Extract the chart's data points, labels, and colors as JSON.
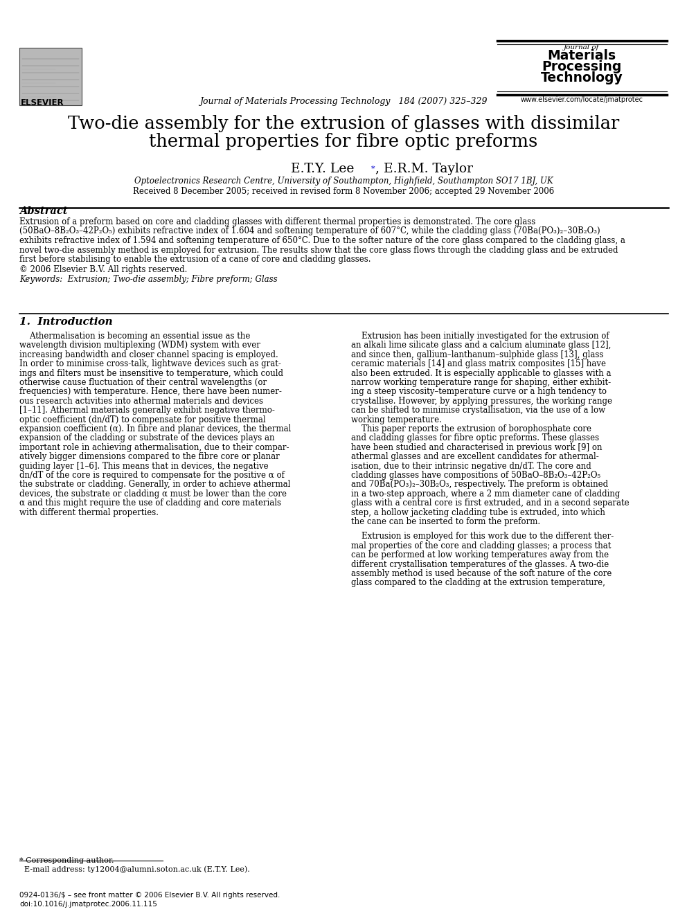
{
  "title_line1": "Two-die assembly for the extrusion of glasses with dissimilar",
  "title_line2": "thermal properties for fibre optic preforms",
  "authors_part1": "E.T.Y. Lee",
  "authors_part2": ", E.R.M. Taylor",
  "affiliation": "Optoelectronics Research Centre, University of Southampton, Highfield, Southampton SO17 1BJ, UK",
  "received": "Received 8 December 2005; received in revised form 8 November 2006; accepted 29 November 2006",
  "journal_header": "Journal of Materials Processing Technology   184 (2007) 325–329",
  "journal_name_line1": "Journal of",
  "journal_name_line2": "Materials",
  "journal_name_line3": "Processing",
  "journal_name_line4": "Technology",
  "journal_url": "www.elsevier.com/locate/jmatprotec",
  "elsevier_text": "ELSEVIER",
  "abstract_title": "Abstract",
  "abstract_lines": [
    "Extrusion of a preform based on core and cladding glasses with different thermal properties is demonstrated. The core glass",
    "(50BaO–8B₂O₃–42P₂O₅) exhibits refractive index of 1.604 and softening temperature of 607°C, while the cladding glass (70Ba(PO₃)₂–30B₂O₃)",
    "exhibits refractive index of 1.594 and softening temperature of 650°C. Due to the softer nature of the core glass compared to the cladding glass, a",
    "novel two-die assembly method is employed for extrusion. The results show that the core glass flows through the cladding glass and be extruded",
    "first before stabilising to enable the extrusion of a cane of core and cladding glasses."
  ],
  "copyright": "© 2006 Elsevier B.V. All rights reserved.",
  "keywords_line": "Keywords:  Extrusion; Two-die assembly; Fibre preform; Glass",
  "section1_title": "1.  Introduction",
  "left_col_lines": [
    "    Athermalisation is becoming an essential issue as the",
    "wavelength division multiplexing (WDM) system with ever",
    "increasing bandwidth and closer channel spacing is employed.",
    "In order to minimise cross-talk, lightwave devices such as grat-",
    "ings and filters must be insensitive to temperature, which could",
    "otherwise cause fluctuation of their central wavelengths (or",
    "frequencies) with temperature. Hence, there have been numer-",
    "ous research activities into athermal materials and devices",
    "[1–11]. Athermal materials generally exhibit negative thermo-",
    "optic coefficient (dn/dT) to compensate for positive thermal",
    "expansion coefficient (α). In fibre and planar devices, the thermal",
    "expansion of the cladding or substrate of the devices plays an",
    "important role in achieving athermalisation, due to their compar-",
    "atively bigger dimensions compared to the fibre core or planar",
    "guiding layer [1–6]. This means that in devices, the negative",
    "dn/dT of the core is required to compensate for the positive α of",
    "the substrate or cladding. Generally, in order to achieve athermal",
    "devices, the substrate or cladding α must be lower than the core",
    "α and this might require the use of cladding and core materials",
    "with different thermal properties."
  ],
  "right_col_lines": [
    "    Extrusion has been initially investigated for the extrusion of",
    "an alkali lime silicate glass and a calcium aluminate glass [12],",
    "and since then, gallium–lanthanum–sulphide glass [13], glass",
    "ceramic materials [14] and glass matrix composites [15] have",
    "also been extruded. It is especially applicable to glasses with a",
    "narrow working temperature range for shaping, either exhibit-",
    "ing a steep viscosity–temperature curve or a high tendency to",
    "crystallise. However, by applying pressures, the working range",
    "can be shifted to minimise crystallisation, via the use of a low",
    "working temperature.",
    "    This paper reports the extrusion of borophosphate core",
    "and cladding glasses for fibre optic preforms. These glasses",
    "have been studied and characterised in previous work [9] on",
    "athermal glasses and are excellent candidates for athermal-",
    "isation, due to their intrinsic negative dn/dT. The core and",
    "cladding glasses have compositions of 50BaO–8B₂O₃–42P₂O₅",
    "and 70Ba(PO₃)₂–30B₂O₃, respectively. The preform is obtained",
    "in a two-step approach, where a 2 mm diameter cane of cladding",
    "glass with a central core is first extruded, and in a second separate",
    "step, a hollow jacketing cladding tube is extruded, into which",
    "the cane can be inserted to form the preform."
  ],
  "right_col_lower_lines": [
    "    Extrusion is employed for this work due to the different ther-",
    "mal properties of the core and cladding glasses; a process that",
    "can be performed at low working temperatures away from the",
    "different crystallisation temperatures of the glasses. A two-die",
    "assembly method is used because of the soft nature of the core",
    "glass compared to the cladding at the extrusion temperature,"
  ],
  "footnote1": "* Corresponding author.",
  "footnote2": "  E-mail address: ty12004@alumni.soton.ac.uk (E.T.Y. Lee).",
  "bottom_line1": "0924-0136/$ – see front matter © 2006 Elsevier B.V. All rights reserved.",
  "bottom_line2": "doi:10.1016/j.jmatprotec.2006.11.115",
  "bg_color": "#ffffff"
}
